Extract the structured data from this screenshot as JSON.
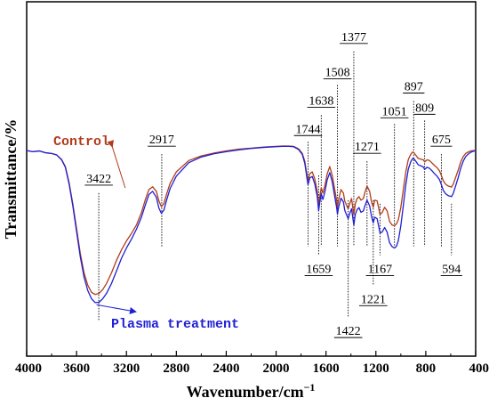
{
  "chart_data": {
    "type": "line",
    "xlabel": "Wavenumber/cm",
    "xlabel_sup": "−1",
    "ylabel": "Transmittance/%",
    "xlim": [
      4000,
      400
    ],
    "x_reversed": true,
    "ylim": [
      0,
      100
    ],
    "y_ticks_shown": false,
    "grid": false,
    "x_ticks": [
      {
        "value": 4000,
        "label": "4000"
      },
      {
        "value": 3600,
        "label": "3600"
      },
      {
        "value": 3200,
        "label": "3200"
      },
      {
        "value": 2800,
        "label": "2800"
      },
      {
        "value": 2400,
        "label": "2400"
      },
      {
        "value": 2000,
        "label": "2000"
      },
      {
        "value": 1600,
        "label": "1600"
      },
      {
        "value": 1200,
        "label": "1200"
      },
      {
        "value": 800,
        "label": "800"
      },
      {
        "value": 400,
        "label": "400"
      }
    ],
    "series": [
      {
        "name": "Control",
        "color": "#b03c1a",
        "label_anchor": [
          3210,
          50
        ],
        "points": [
          [
            4000,
            58
          ],
          [
            3950,
            57.7
          ],
          [
            3900,
            57.9
          ],
          [
            3850,
            57.4
          ],
          [
            3800,
            57.2
          ],
          [
            3760,
            56.8
          ],
          [
            3720,
            55.5
          ],
          [
            3690,
            53.5
          ],
          [
            3660,
            49
          ],
          [
            3630,
            43
          ],
          [
            3600,
            36
          ],
          [
            3570,
            29
          ],
          [
            3540,
            23.5
          ],
          [
            3510,
            20
          ],
          [
            3480,
            18
          ],
          [
            3450,
            17.4
          ],
          [
            3420,
            17.7
          ],
          [
            3390,
            18.8
          ],
          [
            3360,
            20.5
          ],
          [
            3320,
            23.5
          ],
          [
            3280,
            27
          ],
          [
            3240,
            30
          ],
          [
            3200,
            32.5
          ],
          [
            3160,
            34.6
          ],
          [
            3120,
            37
          ],
          [
            3080,
            40.5
          ],
          [
            3050,
            44
          ],
          [
            3020,
            47
          ],
          [
            2990,
            47.8
          ],
          [
            2960,
            46.5
          ],
          [
            2940,
            43.8
          ],
          [
            2920,
            42.2
          ],
          [
            2900,
            43
          ],
          [
            2880,
            45.5
          ],
          [
            2850,
            48.8
          ],
          [
            2800,
            52
          ],
          [
            2700,
            55.2
          ],
          [
            2600,
            56.5
          ],
          [
            2500,
            57.3
          ],
          [
            2400,
            57.9
          ],
          [
            2300,
            58.4
          ],
          [
            2200,
            58.7
          ],
          [
            2100,
            59
          ],
          [
            2000,
            59.2
          ],
          [
            1950,
            59.3
          ],
          [
            1900,
            59.3
          ],
          [
            1860,
            59.2
          ],
          [
            1820,
            58.5
          ],
          [
            1790,
            57.2
          ],
          [
            1770,
            55
          ],
          [
            1750,
            50.5
          ],
          [
            1744,
            49.5
          ],
          [
            1730,
            51.5
          ],
          [
            1710,
            52
          ],
          [
            1690,
            50
          ],
          [
            1670,
            46.5
          ],
          [
            1659,
            42.5
          ],
          [
            1650,
            45
          ],
          [
            1638,
            47.5
          ],
          [
            1625,
            46
          ],
          [
            1610,
            48
          ],
          [
            1590,
            51.5
          ],
          [
            1570,
            53.5
          ],
          [
            1550,
            51
          ],
          [
            1530,
            47
          ],
          [
            1515,
            44
          ],
          [
            1508,
            42
          ],
          [
            1500,
            44
          ],
          [
            1480,
            47
          ],
          [
            1460,
            46
          ],
          [
            1450,
            43.8
          ],
          [
            1440,
            43
          ],
          [
            1422,
            41.5
          ],
          [
            1410,
            43
          ],
          [
            1395,
            44.5
          ],
          [
            1377,
            39.8
          ],
          [
            1365,
            43
          ],
          [
            1350,
            44.5
          ],
          [
            1335,
            45
          ],
          [
            1320,
            44
          ],
          [
            1300,
            44.5
          ],
          [
            1290,
            46
          ],
          [
            1271,
            48
          ],
          [
            1250,
            46.5
          ],
          [
            1235,
            43.5
          ],
          [
            1221,
            42
          ],
          [
            1210,
            44
          ],
          [
            1190,
            43.8
          ],
          [
            1167,
            40
          ],
          [
            1150,
            40.5
          ],
          [
            1130,
            42
          ],
          [
            1110,
            41
          ],
          [
            1090,
            38
          ],
          [
            1070,
            37
          ],
          [
            1051,
            36.8
          ],
          [
            1035,
            37.3
          ],
          [
            1020,
            38.5
          ],
          [
            1000,
            42
          ],
          [
            980,
            47
          ],
          [
            960,
            52
          ],
          [
            940,
            55.5
          ],
          [
            920,
            57
          ],
          [
            905,
            57.6
          ],
          [
            897,
            57.5
          ],
          [
            880,
            56.7
          ],
          [
            860,
            55.8
          ],
          [
            840,
            55.6
          ],
          [
            820,
            55.4
          ],
          [
            809,
            54.8
          ],
          [
            790,
            55.4
          ],
          [
            770,
            55.2
          ],
          [
            750,
            54.5
          ],
          [
            730,
            53.8
          ],
          [
            710,
            53.2
          ],
          [
            690,
            52.3
          ],
          [
            675,
            51
          ],
          [
            660,
            49.5
          ],
          [
            640,
            48.5
          ],
          [
            620,
            48
          ],
          [
            600,
            47.8
          ],
          [
            594,
            47.7
          ],
          [
            580,
            48.5
          ],
          [
            560,
            50.5
          ],
          [
            540,
            52.5
          ],
          [
            520,
            54.8
          ],
          [
            500,
            56.3
          ],
          [
            480,
            57.2
          ],
          [
            460,
            57.6
          ],
          [
            440,
            57.9
          ],
          [
            420,
            58
          ],
          [
            400,
            58
          ]
        ]
      },
      {
        "name": "Plasma treatment",
        "color": "#1f1fd6",
        "label_anchor": [
          3590,
          3
        ],
        "points": [
          [
            4000,
            58
          ],
          [
            3950,
            57.7
          ],
          [
            3900,
            57.9
          ],
          [
            3850,
            57.4
          ],
          [
            3800,
            57.2
          ],
          [
            3760,
            56.8
          ],
          [
            3720,
            55.4
          ],
          [
            3690,
            53.3
          ],
          [
            3660,
            48.6
          ],
          [
            3630,
            42.4
          ],
          [
            3600,
            35.2
          ],
          [
            3570,
            28
          ],
          [
            3540,
            22.3
          ],
          [
            3510,
            18.5
          ],
          [
            3480,
            16.2
          ],
          [
            3450,
            15.1
          ],
          [
            3420,
            15.2
          ],
          [
            3390,
            16.2
          ],
          [
            3360,
            17.7
          ],
          [
            3320,
            20.5
          ],
          [
            3280,
            24
          ],
          [
            3240,
            27.6
          ],
          [
            3200,
            30.5
          ],
          [
            3160,
            33
          ],
          [
            3120,
            35.8
          ],
          [
            3080,
            39.2
          ],
          [
            3050,
            42.5
          ],
          [
            3020,
            45.6
          ],
          [
            2990,
            46.5
          ],
          [
            2960,
            44.8
          ],
          [
            2940,
            41.8
          ],
          [
            2920,
            40.3
          ],
          [
            2900,
            41.2
          ],
          [
            2880,
            43.8
          ],
          [
            2850,
            47.3
          ],
          [
            2800,
            50.8
          ],
          [
            2700,
            54.6
          ],
          [
            2600,
            56.2
          ],
          [
            2500,
            57.1
          ],
          [
            2400,
            57.7
          ],
          [
            2300,
            58.2
          ],
          [
            2200,
            58.6
          ],
          [
            2100,
            58.9
          ],
          [
            2000,
            59.1
          ],
          [
            1950,
            59.2
          ],
          [
            1900,
            59.2
          ],
          [
            1860,
            59.1
          ],
          [
            1820,
            58.3
          ],
          [
            1790,
            56.9
          ],
          [
            1770,
            54.4
          ],
          [
            1750,
            49.6
          ],
          [
            1744,
            48.4
          ],
          [
            1730,
            50.3
          ],
          [
            1710,
            50.7
          ],
          [
            1690,
            48.6
          ],
          [
            1670,
            45
          ],
          [
            1659,
            41
          ],
          [
            1650,
            43.4
          ],
          [
            1638,
            45.8
          ],
          [
            1625,
            44.2
          ],
          [
            1610,
            46.2
          ],
          [
            1590,
            49.8
          ],
          [
            1570,
            51.8
          ],
          [
            1550,
            49.2
          ],
          [
            1530,
            45
          ],
          [
            1515,
            42
          ],
          [
            1508,
            40
          ],
          [
            1500,
            41.8
          ],
          [
            1480,
            44.6
          ],
          [
            1460,
            43.5
          ],
          [
            1450,
            41.2
          ],
          [
            1440,
            40.3
          ],
          [
            1422,
            38.8
          ],
          [
            1410,
            40.2
          ],
          [
            1395,
            41.6
          ],
          [
            1377,
            37
          ],
          [
            1365,
            40
          ],
          [
            1350,
            41.4
          ],
          [
            1335,
            41.9
          ],
          [
            1320,
            40.6
          ],
          [
            1300,
            41
          ],
          [
            1290,
            42.2
          ],
          [
            1271,
            44
          ],
          [
            1250,
            42.4
          ],
          [
            1235,
            39.4
          ],
          [
            1221,
            37.6
          ],
          [
            1210,
            39.2
          ],
          [
            1190,
            38.8
          ],
          [
            1167,
            34.8
          ],
          [
            1150,
            35
          ],
          [
            1130,
            36.3
          ],
          [
            1110,
            35
          ],
          [
            1090,
            32
          ],
          [
            1070,
            30.9
          ],
          [
            1051,
            30.5
          ],
          [
            1035,
            31
          ],
          [
            1020,
            32.6
          ],
          [
            1000,
            36.8
          ],
          [
            980,
            42.5
          ],
          [
            960,
            48.4
          ],
          [
            940,
            52.8
          ],
          [
            920,
            54.9
          ],
          [
            905,
            55.8
          ],
          [
            897,
            55.8
          ],
          [
            880,
            55
          ],
          [
            860,
            54
          ],
          [
            840,
            53.7
          ],
          [
            820,
            53.4
          ],
          [
            809,
            52.7
          ],
          [
            790,
            53.3
          ],
          [
            770,
            53
          ],
          [
            750,
            52.3
          ],
          [
            730,
            51.5
          ],
          [
            710,
            50.8
          ],
          [
            690,
            49.8
          ],
          [
            675,
            48.4
          ],
          [
            660,
            46.8
          ],
          [
            640,
            45.8
          ],
          [
            620,
            45.3
          ],
          [
            600,
            45.1
          ],
          [
            594,
            45
          ],
          [
            580,
            45.9
          ],
          [
            560,
            48.1
          ],
          [
            540,
            50.4
          ],
          [
            520,
            53
          ],
          [
            500,
            55
          ],
          [
            480,
            56.3
          ],
          [
            460,
            57
          ],
          [
            440,
            57.5
          ],
          [
            420,
            57.8
          ],
          [
            400,
            58
          ]
        ]
      }
    ],
    "annotations": [
      {
        "label": "3422",
        "x": 3422,
        "text_x": 3422,
        "text_y": 49,
        "line_top": 46,
        "line_bottom": 10,
        "underline": true
      },
      {
        "label": "2917",
        "x": 2917,
        "text_x": 2917,
        "text_y": 60,
        "line_top": 57,
        "line_bottom": 31,
        "underline": true
      },
      {
        "label": "1744",
        "x": 1744,
        "text_x": 1744,
        "text_y": 63,
        "line_top": 60.5,
        "line_bottom": 31,
        "underline": true
      },
      {
        "label": "1638",
        "x": 1638,
        "text_x": 1638,
        "text_y": 71,
        "line_top": 68,
        "line_bottom": 31,
        "underline": true
      },
      {
        "label": "1508",
        "x": 1508,
        "text_x": 1508,
        "text_y": 79,
        "line_top": 76.5,
        "line_bottom": 31,
        "underline": true
      },
      {
        "label": "1377",
        "x": 1377,
        "text_x": 1377,
        "text_y": 89,
        "line_top": 86,
        "line_bottom": 31,
        "underline": true
      },
      {
        "label": "1271",
        "x": 1271,
        "text_x": 1271,
        "text_y": 58,
        "line_top": 55,
        "line_bottom": 31,
        "underline": true
      },
      {
        "label": "1051",
        "x": 1051,
        "text_x": 1051,
        "text_y": 68,
        "line_top": 65.5,
        "line_bottom": 31,
        "underline": true
      },
      {
        "label": "897",
        "x": 897,
        "text_x": 897,
        "text_y": 75,
        "line_top": 72,
        "line_bottom": 31,
        "underline": true
      },
      {
        "label": "809",
        "x": 809,
        "text_x": 809,
        "text_y": 69,
        "line_top": 66.5,
        "line_bottom": 31,
        "underline": true
      },
      {
        "label": "675",
        "x": 675,
        "text_x": 675,
        "text_y": 60,
        "line_top": 57,
        "line_bottom": 31,
        "underline": true
      },
      {
        "label": "1659",
        "x": 1659,
        "text_x": 1659,
        "text_y": 23.5,
        "line_top": 51,
        "line_bottom": 28.5,
        "underline": true
      },
      {
        "label": "1167",
        "x": 1167,
        "text_x": 1167,
        "text_y": 23.5,
        "line_top": 43,
        "line_bottom": 28.5,
        "underline": true
      },
      {
        "label": "594",
        "x": 594,
        "text_x": 594,
        "text_y": 23.5,
        "line_top": 43,
        "line_bottom": 28.5,
        "underline": true
      },
      {
        "label": "1221",
        "x": 1221,
        "text_x": 1221,
        "text_y": 15,
        "line_top": 44,
        "line_bottom": 20,
        "underline": true
      },
      {
        "label": "1422",
        "x": 1422,
        "text_x": 1422,
        "text_y": 6,
        "line_top": 44,
        "line_bottom": 11,
        "underline": true
      }
    ]
  }
}
